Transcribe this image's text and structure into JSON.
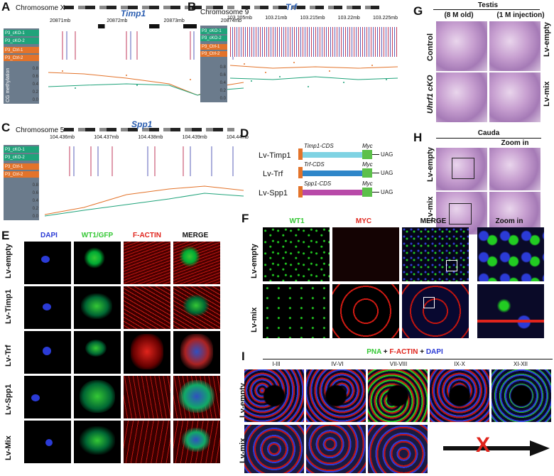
{
  "panels": {
    "A": {
      "label": "A",
      "chromosome": "Chromosome X",
      "gene": "Timp1",
      "ticks": [
        "20871mb",
        "20872mb",
        "20873mb",
        "20874mb"
      ]
    },
    "B": {
      "label": "B",
      "chromosome": "Chromosome 9",
      "gene": "Trf",
      "ticks": [
        "103.205mb",
        "103.21mb",
        "103.215mb",
        "103.22mb",
        "103.225mb"
      ]
    },
    "C": {
      "label": "C",
      "chromosome": "Chromosome 5",
      "gene": "Spp1",
      "ticks": [
        "104.436mb",
        "104.437mb",
        "104.438mb",
        "104.439mb",
        "104.44mb"
      ]
    },
    "D": {
      "label": "D",
      "constructs": [
        {
          "name": "Lv-Timp1",
          "cds": "Timp1-CDS",
          "tag": "Myc",
          "stop": "UAG",
          "color": "#7fd3e3"
        },
        {
          "name": "Lv-Trf",
          "cds": "Trf-CDS",
          "tag": "Myc",
          "stop": "UAG",
          "color": "#2f86c9"
        },
        {
          "name": "Lv-Spp1",
          "cds": "Spp1-CDS",
          "tag": "Myc",
          "stop": "UAG",
          "color": "#b84aa8"
        }
      ]
    },
    "E": {
      "label": "E",
      "columns": [
        "DAPI",
        "WT1/GFP",
        "F-ACTIN",
        "MERGE"
      ],
      "rows": [
        "Lv-empty",
        "Lv-Timp1",
        "Lv-Trf",
        "Lv-Spp1",
        "Lv-Mix"
      ]
    },
    "F": {
      "label": "F",
      "columns": [
        "WT1",
        "MYC",
        "MERGE",
        "Zoom in"
      ],
      "rows": [
        "Lv-empty",
        "Lv-mix"
      ]
    },
    "G": {
      "label": "G",
      "title": "Testis",
      "columns": [
        "(8 M old)",
        "(1 M injection)"
      ],
      "rows_left": [
        "Control",
        "Uhrf1 cKO"
      ],
      "rows_right": [
        "Lv-empty",
        "Lv-mix"
      ]
    },
    "H": {
      "label": "H",
      "title": "Cauda",
      "zoom": "Zoom in",
      "rows": [
        "Lv-empty",
        "Lv-mix"
      ]
    },
    "I": {
      "label": "I",
      "legend_pna": "PNA",
      "legend_plus1": " + ",
      "legend_factin": "F-ACTIN",
      "legend_plus2": " + ",
      "legend_dapi": "DAPI",
      "stages": [
        "I-III",
        "IV-VI",
        "VII-VIII",
        "IX-X",
        "XI-XII"
      ],
      "rows": [
        "Lv-empty",
        "Lv-mix"
      ],
      "cross": "X"
    }
  },
  "tracks": {
    "samples": [
      "P3_cKO-1",
      "P3_cKO-2",
      "P3_Ctrl-1",
      "P3_Ctrl-2"
    ],
    "yaxis_title": "CG methylation",
    "yticks": [
      "0.8",
      "0.6",
      "0.4",
      "0.2",
      "0.0"
    ]
  },
  "colors": {
    "cko": "#1fa37a",
    "ctrl": "#e3732a",
    "dapi": "#2b3bd6",
    "gfp": "#35c835",
    "actin": "#e0241c",
    "gene": "#2a5db0"
  }
}
